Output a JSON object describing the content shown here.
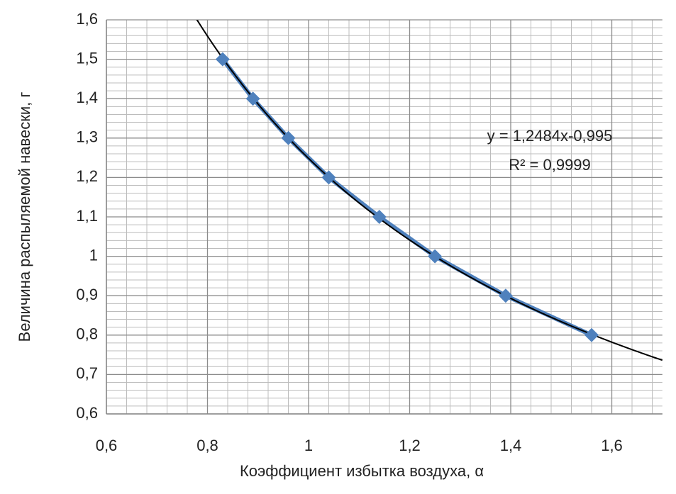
{
  "chart_data": {
    "type": "scatter",
    "xlabel": "Коэффициент избытка воздуха, α",
    "ylabel": "Величина распыляемой навески, г",
    "x": [
      0.83,
      0.89,
      0.96,
      1.04,
      1.14,
      1.25,
      1.39,
      1.56
    ],
    "values": [
      1.5,
      1.4,
      1.3,
      1.2,
      1.1,
      1.0,
      0.9,
      0.8
    ],
    "color": "#4f81bd",
    "xlim": [
      0.6,
      1.7
    ],
    "xticks": [
      {
        "value": 0.6,
        "label": "0,6"
      },
      {
        "value": 0.8,
        "label": "0,8"
      },
      1,
      {
        "value": 1.2,
        "label": "1,2"
      },
      {
        "value": 1.4,
        "label": "1,4"
      },
      {
        "value": 1.6,
        "label": "1,6"
      }
    ],
    "ylim": [
      0.6,
      1.6
    ],
    "yticks": [
      {
        "value": 0.6,
        "label": "0,6"
      },
      {
        "value": 0.7,
        "label": "0,7"
      },
      {
        "value": 0.8,
        "label": "0,8"
      },
      {
        "value": 0.9,
        "label": "0,9"
      },
      1,
      {
        "value": 1.1,
        "label": "1,1"
      },
      {
        "value": 1.2,
        "label": "1,2"
      },
      {
        "value": 1.3,
        "label": "1,3"
      },
      {
        "value": 1.4,
        "label": "1,4"
      },
      {
        "value": 1.5,
        "label": "1,5"
      },
      {
        "value": 1.6,
        "label": "1,6"
      }
    ],
    "grid": true,
    "minor_grid": true,
    "trendline": {
      "type": "power",
      "a": 1.2484,
      "b": -0.995,
      "color": "#000000",
      "equation": "y = 1,2484x-0,995",
      "r2_label": "R² = 0,9999"
    }
  }
}
